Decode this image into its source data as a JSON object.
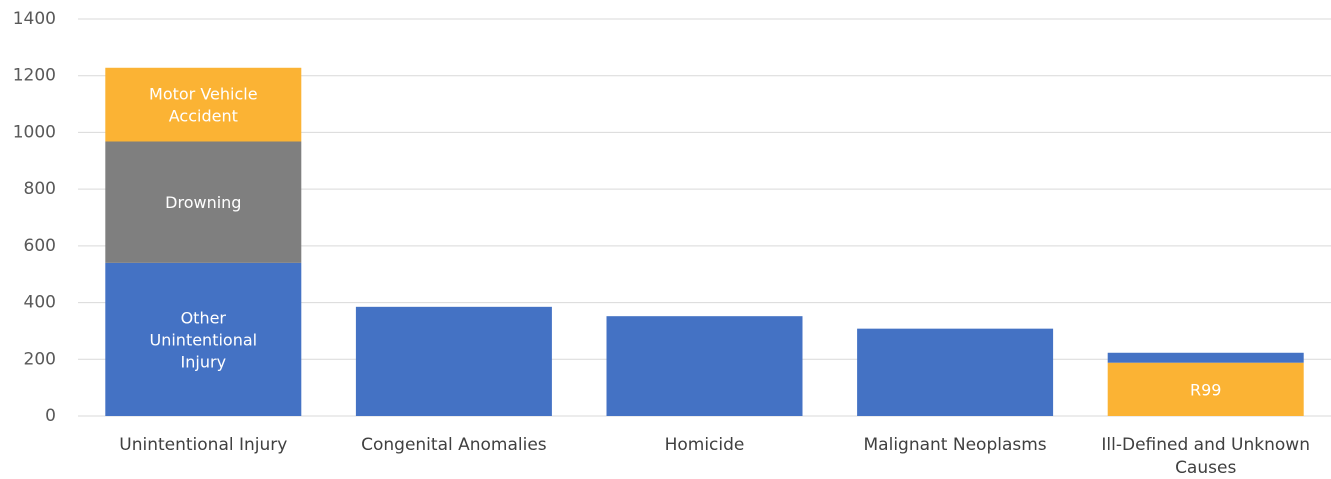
{
  "chart_data": {
    "type": "bar",
    "stacked": true,
    "grid": true,
    "ylim": [
      0,
      1400
    ],
    "yticks": [
      0,
      200,
      400,
      600,
      800,
      1000,
      1200,
      1400
    ],
    "categories": [
      [
        "Unintentional Injury"
      ],
      [
        "Congenital Anomalies"
      ],
      [
        "Homicide"
      ],
      [
        "Malignant Neoplasms"
      ],
      [
        "Ill-Defined and Unknown",
        "Causes"
      ]
    ],
    "bars": [
      {
        "segments": [
          {
            "value": 540,
            "color": "#4472C4",
            "label": [
              "Other",
              "Unintentional",
              "Injury"
            ]
          },
          {
            "value": 428,
            "color": "#7F7F7F",
            "label": [
              "Drowning"
            ]
          },
          {
            "value": 260,
            "color": "#FBB334",
            "label": [
              "Motor Vehicle",
              "Accident"
            ]
          }
        ]
      },
      {
        "segments": [
          {
            "value": 385,
            "color": "#4472C4",
            "label": []
          }
        ]
      },
      {
        "segments": [
          {
            "value": 352,
            "color": "#4472C4",
            "label": []
          }
        ]
      },
      {
        "segments": [
          {
            "value": 308,
            "color": "#4472C4",
            "label": []
          }
        ]
      },
      {
        "segments": [
          {
            "value": 188,
            "color": "#FBB334",
            "label": [
              "R99"
            ]
          },
          {
            "value": 35,
            "color": "#4472C4",
            "label": []
          }
        ]
      }
    ]
  }
}
